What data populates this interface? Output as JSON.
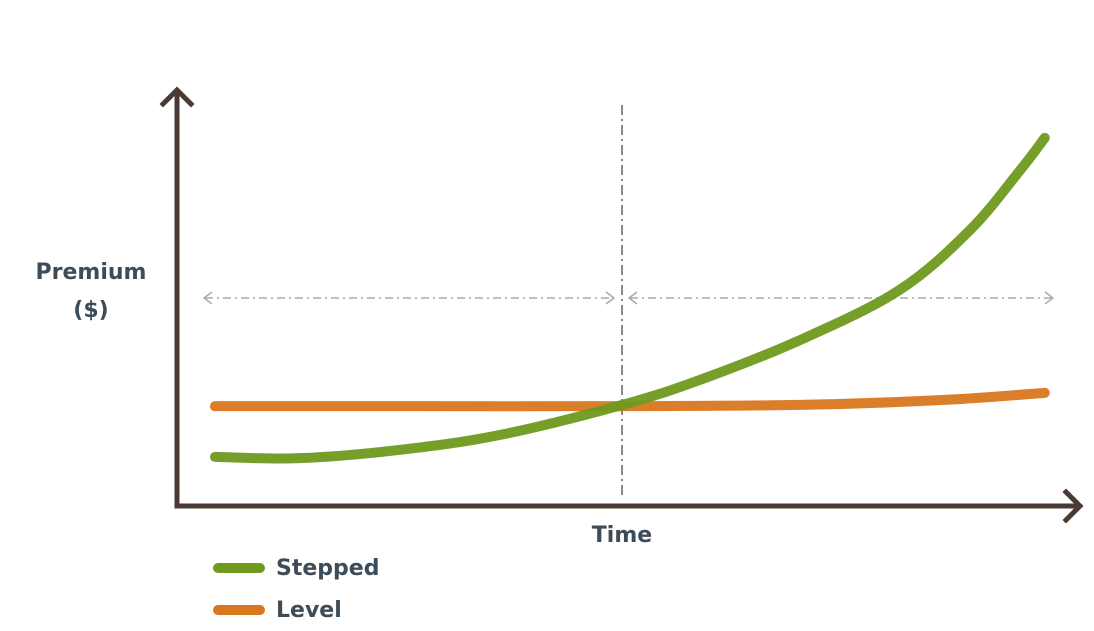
{
  "chart_data": {
    "type": "line",
    "y_label_lines": [
      "Premium",
      "($)"
    ],
    "x_label": "Time",
    "xlim": [
      0,
      10
    ],
    "ylim": [
      0,
      10
    ],
    "series": [
      {
        "name": "Stepped",
        "color": "#6f9a1f",
        "x": [
          0.42,
          1.36,
          2.47,
          3.58,
          4.93,
          5.79,
          6.9,
          8.0,
          8.78,
          9.34,
          9.61
        ],
        "values": [
          1.18,
          1.15,
          1.35,
          1.71,
          2.43,
          3.03,
          3.99,
          5.19,
          6.63,
          8.08,
          8.85
        ]
      },
      {
        "name": "Level",
        "color": "#d9771f",
        "x": [
          0.42,
          2.5,
          4.93,
          6.9,
          8.5,
          9.61
        ],
        "values": [
          2.4,
          2.4,
          2.4,
          2.43,
          2.55,
          2.72
        ]
      }
    ]
  }
}
